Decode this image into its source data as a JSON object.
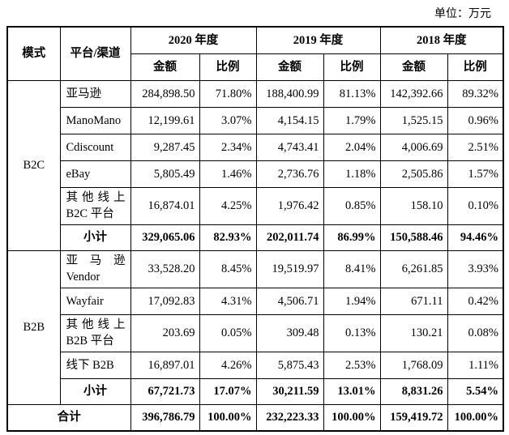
{
  "unit_note": "单位：万元",
  "table": {
    "headers": {
      "mode": "模式",
      "platform": "平台/渠道",
      "years": [
        "2020 年度",
        "2019 年度",
        "2018 年度"
      ],
      "amount": "金额",
      "ratio": "比例"
    },
    "groups": [
      {
        "mode": "B2C",
        "rows": [
          {
            "platform": [
              "亚马逊"
            ],
            "values": [
              "284,898.50",
              "71.80%",
              "188,400.99",
              "81.13%",
              "142,392.66",
              "89.32%"
            ]
          },
          {
            "platform": [
              "ManoMano"
            ],
            "values": [
              "12,199.61",
              "3.07%",
              "4,154.15",
              "1.79%",
              "1,525.15",
              "0.96%"
            ]
          },
          {
            "platform": [
              "Cdiscount"
            ],
            "values": [
              "9,287.45",
              "2.34%",
              "4,743.41",
              "2.04%",
              "4,006.69",
              "2.51%"
            ]
          },
          {
            "platform": [
              "eBay"
            ],
            "values": [
              "5,805.49",
              "1.46%",
              "2,736.76",
              "1.18%",
              "2,505.86",
              "1.57%"
            ]
          },
          {
            "platform": [
              "其他线上",
              "B2C 平台"
            ],
            "values": [
              "16,874.01",
              "4.25%",
              "1,976.42",
              "0.85%",
              "158.10",
              "0.10%"
            ]
          }
        ],
        "subtotal": {
          "label": "小计",
          "values": [
            "329,065.06",
            "82.93%",
            "202,011.74",
            "86.99%",
            "150,588.46",
            "94.46%"
          ]
        }
      },
      {
        "mode": "B2B",
        "rows": [
          {
            "platform": [
              "亚马逊",
              "Vendor"
            ],
            "values": [
              "33,528.20",
              "8.45%",
              "19,519.97",
              "8.41%",
              "6,261.85",
              "3.93%"
            ]
          },
          {
            "platform": [
              "Wayfair"
            ],
            "values": [
              "17,092.83",
              "4.31%",
              "4,506.71",
              "1.94%",
              "671.11",
              "0.42%"
            ]
          },
          {
            "platform": [
              "其他线上",
              "B2B 平台"
            ],
            "values": [
              "203.69",
              "0.05%",
              "309.48",
              "0.13%",
              "130.21",
              "0.08%"
            ]
          },
          {
            "platform": [
              "线下 B2B"
            ],
            "values": [
              "16,897.01",
              "4.26%",
              "5,875.43",
              "2.53%",
              "1,768.09",
              "1.11%"
            ]
          }
        ],
        "subtotal": {
          "label": "小计",
          "values": [
            "67,721.73",
            "17.07%",
            "30,211.59",
            "13.01%",
            "8,831.26",
            "5.54%"
          ]
        }
      }
    ],
    "total": {
      "label": "合计",
      "values": [
        "396,786.79",
        "100.00%",
        "232,223.33",
        "100.00%",
        "159,419.72",
        "100.00%"
      ]
    }
  }
}
